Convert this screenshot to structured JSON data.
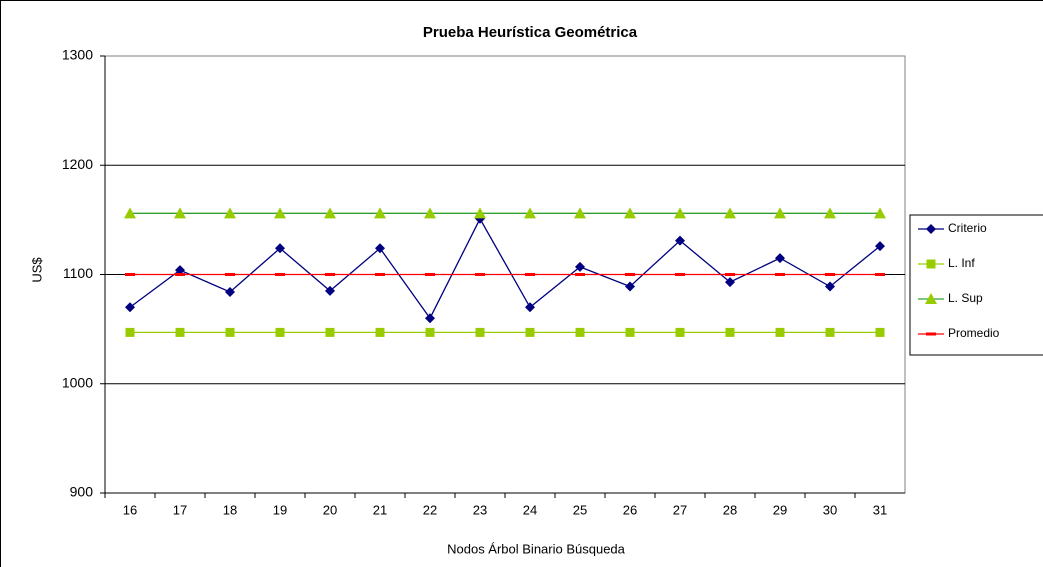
{
  "chart_data": {
    "type": "line",
    "title": "Prueba Heurística Geométrica",
    "x_label": "Nodos Árbol Binario Búsqueda",
    "y_label": "US$",
    "categories": [
      "16",
      "17",
      "18",
      "19",
      "20",
      "21",
      "22",
      "23",
      "24",
      "25",
      "26",
      "27",
      "28",
      "29",
      "30",
      "31"
    ],
    "series": [
      {
        "name": "Criterio",
        "color": "#000080",
        "marker": "diamond",
        "values": [
          1070,
          1104,
          1084,
          1124,
          1085,
          1124,
          1060,
          1151,
          1070,
          1107,
          1089,
          1131,
          1093,
          1115,
          1089,
          1126
        ]
      },
      {
        "name": "L. Inf",
        "color": "#99cc00",
        "marker": "square",
        "values": [
          1047,
          1047,
          1047,
          1047,
          1047,
          1047,
          1047,
          1047,
          1047,
          1047,
          1047,
          1047,
          1047,
          1047,
          1047,
          1047
        ]
      },
      {
        "name": "L. Sup",
        "color": "#33a033",
        "marker": "triangle",
        "values": [
          1156,
          1156,
          1156,
          1156,
          1156,
          1156,
          1156,
          1156,
          1156,
          1156,
          1156,
          1156,
          1156,
          1156,
          1156,
          1156
        ]
      },
      {
        "name": "Promedio",
        "color": "#ff0000",
        "marker": "dash",
        "values": [
          1100,
          1100,
          1100,
          1100,
          1100,
          1100,
          1100,
          1100,
          1100,
          1100,
          1100,
          1100,
          1100,
          1100,
          1100,
          1100
        ]
      }
    ],
    "ylim": [
      900,
      1300
    ],
    "yticks": [
      900,
      1000,
      1100,
      1200,
      1300
    ],
    "grid": true,
    "legend": "right"
  }
}
